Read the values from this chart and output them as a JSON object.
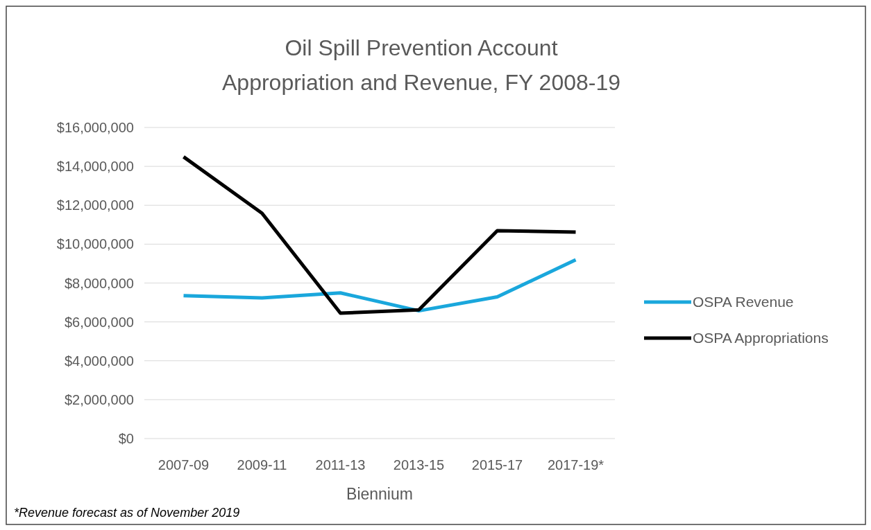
{
  "chart_data": {
    "type": "line",
    "title": "Oil Spill Prevention Account\nAppropriation and Revenue, FY 2008-19",
    "xlabel": "Biennium",
    "categories": [
      "2007-09",
      "2009-11",
      "2011-13",
      "2013-15",
      "2015-17",
      "2017-19*"
    ],
    "series": [
      {
        "name": "OSPA Revenue",
        "color": "#1aa7dc",
        "values": [
          7350000,
          7230000,
          7490000,
          6570000,
          7290000,
          9190000
        ]
      },
      {
        "name": "OSPA Appropriations",
        "color": "#000000",
        "values": [
          14490000,
          11590000,
          6450000,
          6620000,
          10690000,
          10620000
        ]
      }
    ],
    "ylim": [
      0,
      16000000
    ],
    "yticks": [
      {
        "value": 0,
        "label": "$0"
      },
      {
        "value": 2000000,
        "label": "$2,000,000"
      },
      {
        "value": 4000000,
        "label": "$4,000,000"
      },
      {
        "value": 6000000,
        "label": "$6,000,000"
      },
      {
        "value": 8000000,
        "label": "$8,000,000"
      },
      {
        "value": 10000000,
        "label": "$10,000,000"
      },
      {
        "value": 12000000,
        "label": "$12,000,000"
      },
      {
        "value": 14000000,
        "label": "$14,000,000"
      },
      {
        "value": 16000000,
        "label": "$16,000,000"
      }
    ],
    "grid": "y",
    "legend": "right",
    "marker": "none",
    "line_style": "solid",
    "annotations": [
      "*Revenue forecast as of November 2019"
    ]
  }
}
